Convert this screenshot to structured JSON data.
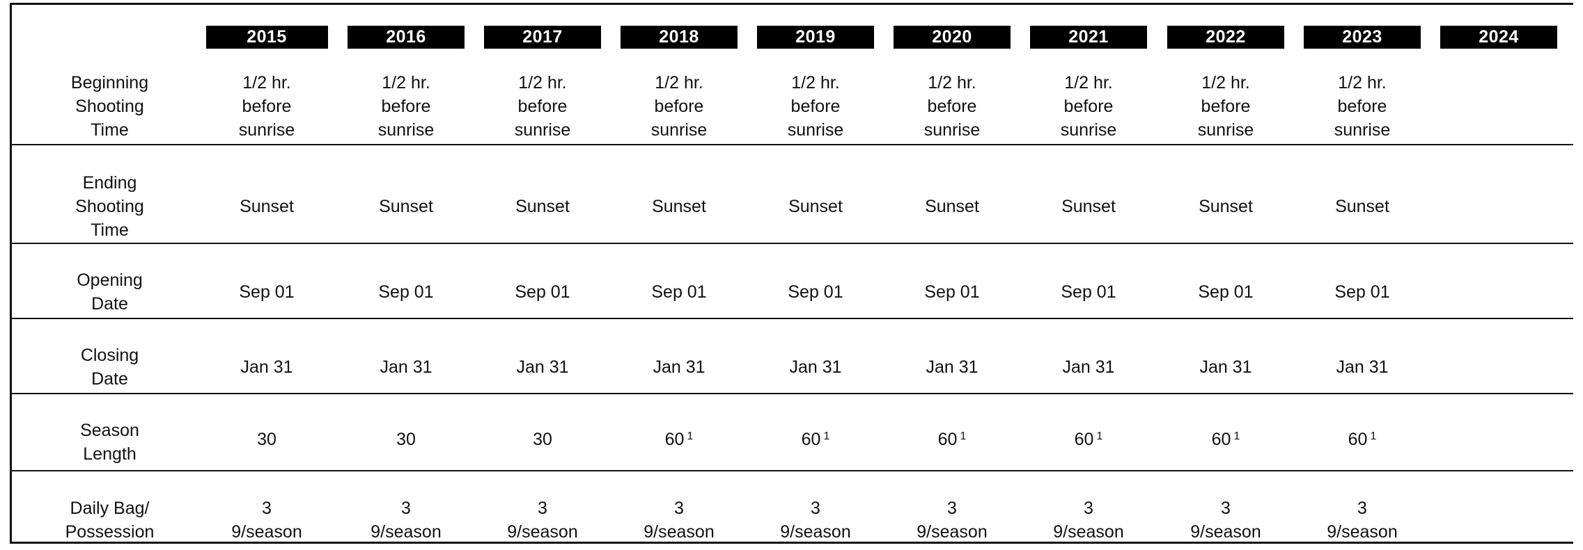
{
  "years": [
    "2015",
    "2016",
    "2017",
    "2018",
    "2019",
    "2020",
    "2021",
    "2022",
    "2023",
    "2024"
  ],
  "rows": [
    {
      "label": "Beginning\nShooting\nTime",
      "cells": [
        "1/2 hr.\nbefore\nsunrise",
        "1/2 hr.\nbefore\nsunrise",
        "1/2 hr.\nbefore\nsunrise",
        "1/2 hr.\nbefore\nsunrise",
        "1/2 hr.\nbefore\nsunrise",
        "1/2 hr.\nbefore\nsunrise",
        "1/2 hr.\nbefore\nsunrise",
        "1/2 hr.\nbefore\nsunrise",
        "1/2 hr.\nbefore\nsunrise",
        ""
      ]
    },
    {
      "label": "Ending\nShooting\nTime",
      "cells": [
        "Sunset",
        "Sunset",
        "Sunset",
        "Sunset",
        "Sunset",
        "Sunset",
        "Sunset",
        "Sunset",
        "Sunset",
        ""
      ]
    },
    {
      "label": "Opening\nDate",
      "cells": [
        "Sep 01",
        "Sep 01",
        "Sep 01",
        "Sep 01",
        "Sep 01",
        "Sep 01",
        "Sep 01",
        "Sep 01",
        "Sep 01",
        ""
      ]
    },
    {
      "label": "Closing\nDate",
      "cells": [
        "Jan 31",
        "Jan 31",
        "Jan 31",
        "Jan 31",
        "Jan 31",
        "Jan 31",
        "Jan 31",
        "Jan 31",
        "Jan 31",
        ""
      ]
    },
    {
      "label": "Season\nLength",
      "cells": [
        "30",
        "30",
        "30",
        "60",
        "60",
        "60",
        "60",
        "60",
        "60",
        ""
      ],
      "footnotes": [
        "",
        "",
        "",
        "1",
        "1",
        "1",
        "1",
        "1",
        "1",
        ""
      ]
    },
    {
      "label": "Daily Bag/\nPossession",
      "cells": [
        "3\n9/season",
        "3\n9/season",
        "3\n9/season",
        "3\n9/season",
        "3\n9/season",
        "3\n9/season",
        "3\n9/season",
        "3\n9/season",
        "3\n9/season",
        ""
      ]
    }
  ]
}
